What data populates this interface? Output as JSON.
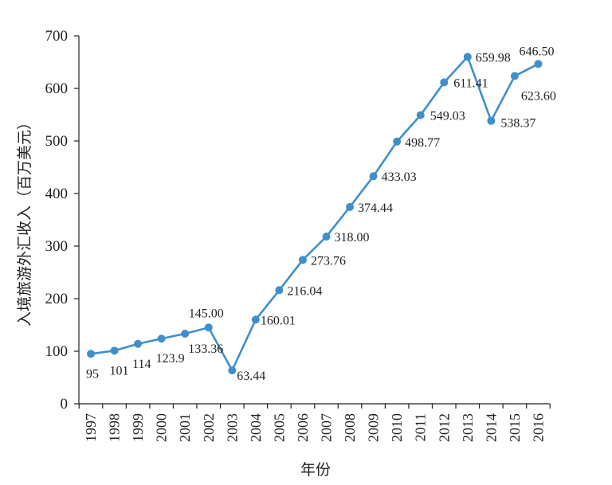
{
  "chart_data": {
    "type": "line",
    "title": "",
    "xlabel": "年份",
    "ylabel": "入境旅游外汇收入（百万美元）",
    "ylim": [
      0,
      700
    ],
    "yticks": [
      0,
      100,
      200,
      300,
      400,
      500,
      600,
      700
    ],
    "categories": [
      "1997",
      "1998",
      "1999",
      "2000",
      "2001",
      "2002",
      "2003",
      "2004",
      "2005",
      "2006",
      "2007",
      "2008",
      "2009",
      "2010",
      "2011",
      "2012",
      "2013",
      "2014",
      "2015",
      "2016"
    ],
    "series": [
      {
        "values": [
          95,
          101,
          114,
          123.9,
          133.36,
          145.0,
          63.44,
          160.01,
          216.04,
          273.76,
          318.0,
          374.44,
          433.03,
          498.77,
          549.03,
          611.41,
          659.98,
          538.37,
          623.6,
          646.5
        ],
        "labels": [
          "95",
          "101",
          "114",
          "123.9",
          "133.36",
          "145.00",
          "63.44",
          "160.01",
          "216.04",
          "273.76",
          "318.00",
          "374.44",
          "433.03",
          "498.77",
          "549.03",
          "611.41",
          "659.98",
          "538.37",
          "623.60",
          "646.50"
        ]
      }
    ],
    "grid": false,
    "legend": "none",
    "colors": {
      "line": "#3f8fcb",
      "axis": "#231f20",
      "text": "#231f20"
    }
  }
}
